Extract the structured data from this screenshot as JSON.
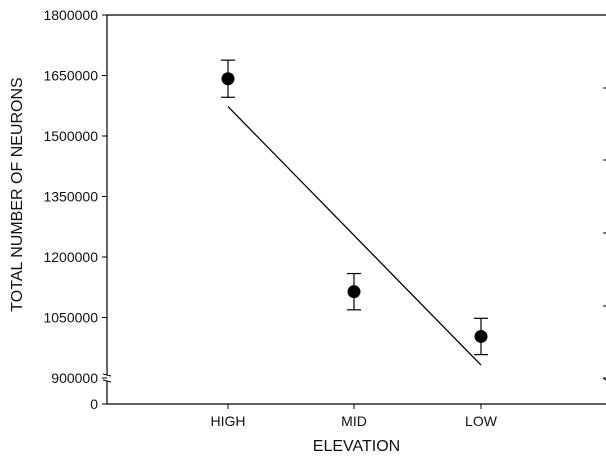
{
  "chart_data": {
    "type": "scatter",
    "xlabel": "ELEVATION",
    "ylabel": "TOTAL NUMBER OF NEURONS",
    "categories": [
      "HIGH",
      "MID",
      "LOW"
    ],
    "y_ticks": [
      1800000,
      1650000,
      1500000,
      1350000,
      1200000,
      1050000,
      900000
    ],
    "y_ticks_text": [
      "1800000",
      "1650000",
      "1500000",
      "1350000",
      "1200000",
      "1050000",
      "900000"
    ],
    "y_zero_label": "0",
    "ylim": [
      900000,
      1800000
    ],
    "axis_break": true,
    "series": [
      {
        "values": [
          1642000,
          1114000,
          1003000
        ],
        "error_upper": [
          1688000,
          1159000,
          1048000
        ],
        "error_lower": [
          1596000,
          1069000,
          958000
        ]
      }
    ],
    "trendline": {
      "start": {
        "x": "HIGH",
        "y": 1573000
      },
      "end": {
        "x": "LOW",
        "y": 932000
      }
    },
    "grid": false,
    "legend": "none",
    "colors": {
      "axis": "#000000",
      "marker": "#000000"
    }
  }
}
